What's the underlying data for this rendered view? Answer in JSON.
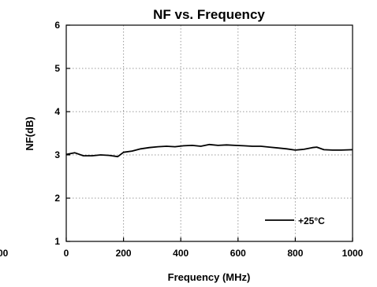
{
  "chart_data": {
    "type": "line",
    "title": "NF vs. Frequency",
    "xlabel": "Frequency (MHz)",
    "ylabel": "NF(dB)",
    "xlim": [
      0,
      1000
    ],
    "ylim": [
      1,
      6
    ],
    "x_ticks": [
      0,
      200,
      400,
      600,
      800,
      1000
    ],
    "x_tick_labels": [
      "0",
      "200",
      "400",
      "600",
      "800",
      "1000"
    ],
    "y_ticks": [
      1,
      2,
      3,
      4,
      5,
      6
    ],
    "y_tick_labels": [
      "1",
      "2",
      "3",
      "4",
      "5",
      "6"
    ],
    "clipped_left_label": "00",
    "grid": true,
    "legend_position": "bottom-right",
    "series": [
      {
        "name": "+25°C",
        "color": "#000000",
        "x": [
          0,
          30,
          60,
          90,
          120,
          150,
          180,
          200,
          230,
          260,
          290,
          320,
          350,
          380,
          410,
          440,
          470,
          500,
          530,
          560,
          590,
          620,
          650,
          680,
          710,
          740,
          770,
          800,
          830,
          860,
          875,
          900,
          930,
          960,
          1000
        ],
        "y": [
          3.01,
          3.05,
          2.98,
          2.98,
          3.0,
          2.99,
          2.96,
          3.06,
          3.09,
          3.14,
          3.17,
          3.19,
          3.2,
          3.19,
          3.21,
          3.22,
          3.2,
          3.24,
          3.22,
          3.23,
          3.22,
          3.21,
          3.2,
          3.2,
          3.18,
          3.16,
          3.14,
          3.11,
          3.13,
          3.17,
          3.18,
          3.12,
          3.11,
          3.11,
          3.12
        ]
      }
    ]
  }
}
